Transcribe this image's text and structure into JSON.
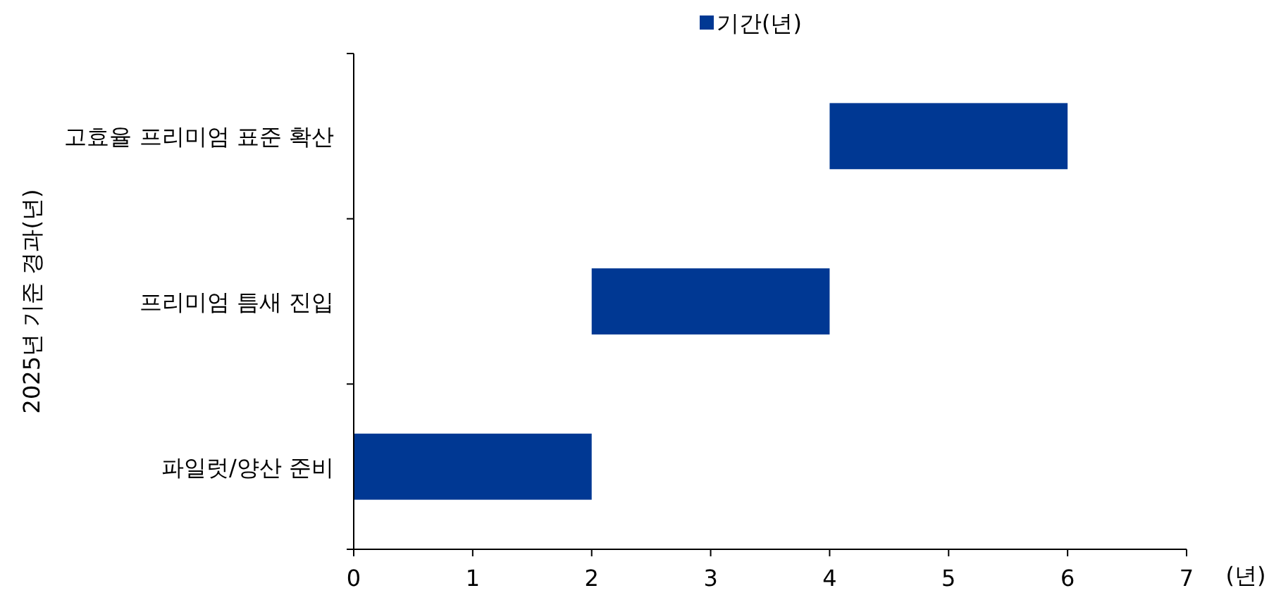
{
  "chart_data": {
    "type": "bar",
    "orientation": "horizontal",
    "categories": [
      "고효율 프리미엄 표준 확산",
      "프리미엄 틈새 진입",
      "파일럿/양산 준비"
    ],
    "series": [
      {
        "name": "기간(년)",
        "color": "#003893",
        "base": [
          4,
          2,
          0
        ],
        "values": [
          2,
          2,
          2
        ]
      }
    ],
    "xlim": [
      0,
      7
    ],
    "xticks": [
      0,
      1,
      2,
      3,
      4,
      5,
      6,
      7
    ],
    "xlabel": "(년)",
    "ylabel": "2025년 기준 경과(년)",
    "legend": "top"
  }
}
